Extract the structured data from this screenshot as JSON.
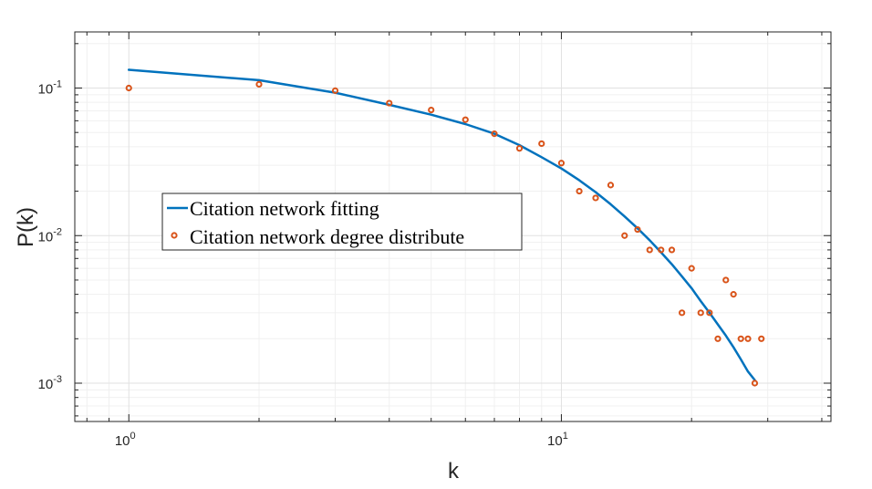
{
  "chart_data": {
    "type": "scatter",
    "title": "",
    "xlabel": "k",
    "ylabel": "P(k)",
    "xscale": "log",
    "yscale": "log",
    "xlim": [
      0.75,
      42
    ],
    "ylim": [
      0.00055,
      0.24
    ],
    "grid": true,
    "legend_position": "center-left",
    "x_ticks": [
      {
        "base": "10",
        "exp": "0",
        "value": 1
      },
      {
        "base": "10",
        "exp": "1",
        "value": 10
      }
    ],
    "y_ticks": [
      {
        "base": "10",
        "exp": "-3",
        "value": 0.001
      },
      {
        "base": "10",
        "exp": "-2",
        "value": 0.01
      },
      {
        "base": "10",
        "exp": "-1",
        "value": 0.1
      }
    ],
    "series": [
      {
        "name": "Citation network fitting",
        "kind": "line",
        "color": "#0072BD",
        "x": [
          1,
          2,
          3,
          4,
          5,
          6,
          7,
          8,
          9,
          10,
          11,
          12,
          13,
          14,
          15,
          16,
          17,
          18,
          19,
          20,
          21,
          22,
          23,
          24,
          25,
          26,
          27,
          28
        ],
        "y": [
          0.133,
          0.113,
          0.093,
          0.077,
          0.066,
          0.057,
          0.049,
          0.041,
          0.034,
          0.0285,
          0.0237,
          0.0197,
          0.0163,
          0.0135,
          0.0112,
          0.0093,
          0.0077,
          0.0064,
          0.0053,
          0.0044,
          0.0036,
          0.003,
          0.0025,
          0.0021,
          0.00175,
          0.00145,
          0.0012,
          0.00105
        ]
      },
      {
        "name": "Citation network degree distribute",
        "kind": "scatter",
        "color": "#D95319",
        "x": [
          1,
          2,
          3,
          4,
          5,
          6,
          7,
          8,
          9,
          10,
          11,
          12,
          13,
          14,
          15,
          16,
          17,
          18,
          19,
          20,
          21,
          22,
          23,
          24,
          25,
          26,
          27,
          28,
          29
        ],
        "y": [
          0.1,
          0.106,
          0.096,
          0.079,
          0.071,
          0.061,
          0.049,
          0.039,
          0.042,
          0.031,
          0.02,
          0.018,
          0.022,
          0.01,
          0.011,
          0.008,
          0.008,
          0.008,
          0.003,
          0.006,
          0.003,
          0.003,
          0.002,
          0.005,
          0.004,
          0.002,
          0.002,
          0.001,
          0.002
        ]
      }
    ]
  }
}
